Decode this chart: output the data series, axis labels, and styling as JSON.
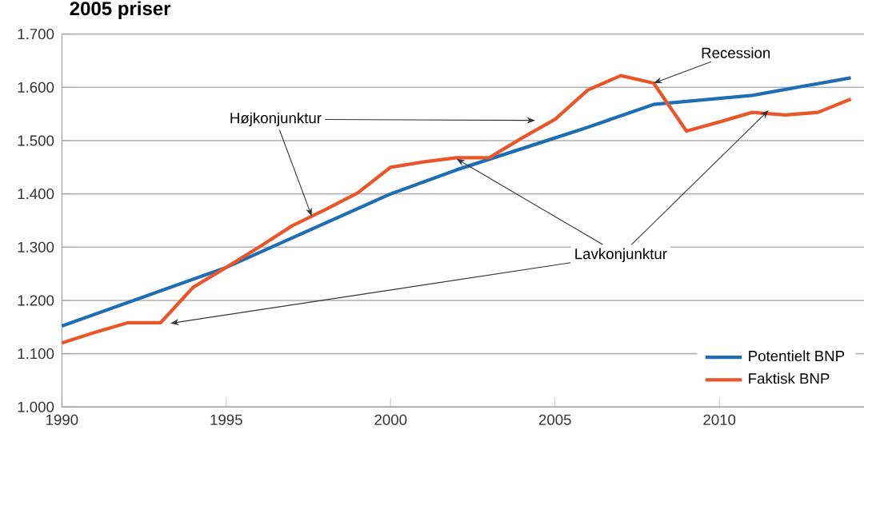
{
  "chart_data": {
    "type": "line",
    "ylabel": "2005 priser",
    "xlim": [
      1990,
      2014.4
    ],
    "xticks": [
      1990,
      1995,
      2000,
      2005,
      2010
    ],
    "ylim": [
      1000,
      1700
    ],
    "yticks": [
      {
        "value": 1000,
        "label": "1.000"
      },
      {
        "value": 1100,
        "label": "1.100"
      },
      {
        "value": 1200,
        "label": "1.200"
      },
      {
        "value": 1300,
        "label": "1.300"
      },
      {
        "value": 1400,
        "label": "1.400"
      },
      {
        "value": 1500,
        "label": "1.500"
      },
      {
        "value": 1600,
        "label": "1.600"
      },
      {
        "value": 1700,
        "label": "1.700"
      }
    ],
    "grid": "y",
    "legend": "bottom right",
    "marker": "none",
    "line_style": "solid",
    "series": [
      {
        "name": "Potentielt BNP",
        "color": "#1f6eb4",
        "x": [
          1990,
          1995,
          2000,
          2002,
          2005,
          2006,
          2008,
          2011,
          2014
        ],
        "values": [
          1152,
          1262,
          1400,
          1445,
          1505,
          1525,
          1568,
          1585,
          1618
        ]
      },
      {
        "name": "Faktisk BNP",
        "color": "#e8562a",
        "x": [
          1990,
          1991,
          1992,
          1993,
          1994,
          1995,
          1996,
          1997,
          1998,
          1999,
          2000,
          2001,
          2002,
          2003,
          2004,
          2005,
          2006,
          2007,
          2008,
          2009,
          2010,
          2011,
          2012,
          2013,
          2014
        ],
        "values": [
          1120,
          1140,
          1158,
          1158,
          1225,
          1262,
          1300,
          1340,
          1370,
          1402,
          1450,
          1460,
          1468,
          1468,
          1505,
          1540,
          1595,
          1622,
          1608,
          1518,
          1535,
          1553,
          1548,
          1553,
          1578
        ]
      }
    ],
    "annotations": [
      {
        "text": "Højkonjunktur",
        "x": 1997.6,
        "y": 1358
      },
      {
        "text": "Recession",
        "x": 2008,
        "y": 1608
      },
      {
        "text": "Lavkonjunktur",
        "x": 2002,
        "y": 1466
      }
    ]
  }
}
